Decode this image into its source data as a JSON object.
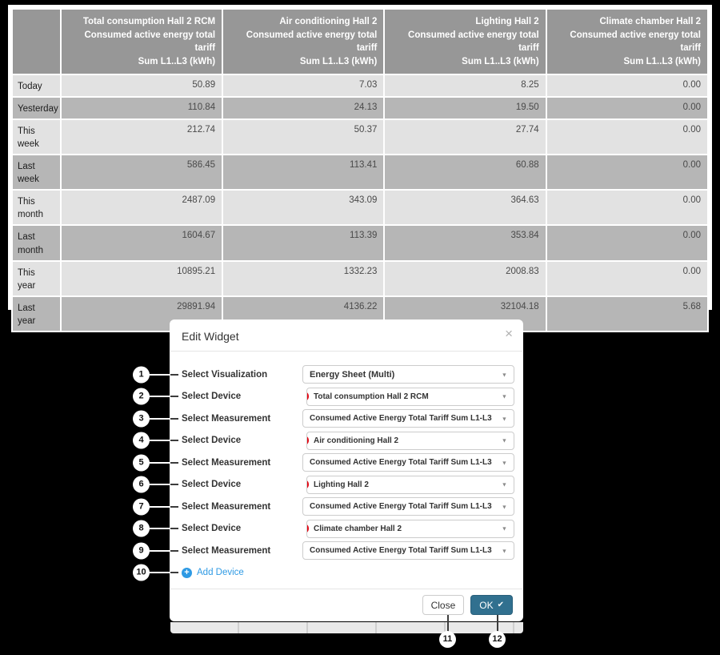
{
  "table": {
    "columns": [
      "Total consumption Hall 2 RCM\nConsumed active energy total tariff\nSum L1..L3 (kWh)",
      "Air conditioning Hall 2\nConsumed active energy total tariff\nSum L1..L3 (kWh)",
      "Lighting Hall 2\nConsumed active energy total tariff\nSum L1..L3 (kWh)",
      "Climate chamber Hall 2\nConsumed active energy total tariff\nSum L1..L3 (kWh)"
    ],
    "rows": [
      {
        "label": "Today",
        "tall": false,
        "values": [
          "50.89",
          "7.03",
          "8.25",
          "0.00"
        ]
      },
      {
        "label": "Yesterday",
        "tall": false,
        "values": [
          "110.84",
          "24.13",
          "19.50",
          "0.00"
        ]
      },
      {
        "label": "This\nweek",
        "tall": true,
        "values": [
          "212.74",
          "50.37",
          "27.74",
          "0.00"
        ]
      },
      {
        "label": "Last\nweek",
        "tall": true,
        "values": [
          "586.45",
          "113.41",
          "60.88",
          "0.00"
        ]
      },
      {
        "label": "This\nmonth",
        "tall": true,
        "values": [
          "2487.09",
          "343.09",
          "364.63",
          "0.00"
        ]
      },
      {
        "label": "Last\nmonth",
        "tall": true,
        "values": [
          "1604.67",
          "113.39",
          "353.84",
          "0.00"
        ]
      },
      {
        "label": "This\nyear",
        "tall": true,
        "values": [
          "10895.21",
          "1332.23",
          "2008.83",
          "0.00"
        ]
      },
      {
        "label": "Last\nyear",
        "tall": true,
        "values": [
          "29891.94",
          "4136.22",
          "32104.18",
          "5.68"
        ]
      }
    ]
  },
  "modal": {
    "title": "Edit Widget",
    "close_icon": "×",
    "rows": [
      {
        "callout": "1",
        "type": "select-viz",
        "label": "Select Visualization",
        "value": "Energy Sheet (Multi)"
      },
      {
        "callout": "2",
        "type": "select-device",
        "label": "Select Device",
        "value": "Total consumption Hall 2 RCM"
      },
      {
        "callout": "3",
        "type": "select-measurement",
        "label": "Select Measurement",
        "value": "Consumed Active Energy Total Tariff Sum L1-L3"
      },
      {
        "callout": "4",
        "type": "select-device",
        "label": "Select Device",
        "value": "Air conditioning Hall 2"
      },
      {
        "callout": "5",
        "type": "select-measurement",
        "label": "Select Measurement",
        "value": "Consumed Active Energy Total Tariff Sum L1-L3"
      },
      {
        "callout": "6",
        "type": "select-device",
        "label": "Select Device",
        "value": "Lighting Hall 2"
      },
      {
        "callout": "7",
        "type": "select-measurement",
        "label": "Select Measurement",
        "value": "Consumed Active Energy Total Tariff Sum L1-L3"
      },
      {
        "callout": "8",
        "type": "select-device",
        "label": "Select Device",
        "value": "Climate chamber Hall 2"
      },
      {
        "callout": "9",
        "type": "select-measurement",
        "label": "Select Measurement",
        "value": "Consumed Active Energy Total Tariff Sum L1-L3"
      },
      {
        "callout": "10",
        "type": "add-link",
        "label": "Add Device",
        "value": ""
      }
    ],
    "add_icon": "+",
    "caret_icon": "▼",
    "footer": {
      "close_label": "Close",
      "ok_label": "OK",
      "ok_check_icon": "✔",
      "close_callout": "11",
      "ok_callout": "12"
    }
  },
  "colors": {
    "table_header_bg": "#979797",
    "row_light": "#e2e2e2",
    "row_dark": "#b6b6b6",
    "ok_button": "#31708f",
    "required_red": "#e30613",
    "link_blue": "#2e9ae4"
  }
}
